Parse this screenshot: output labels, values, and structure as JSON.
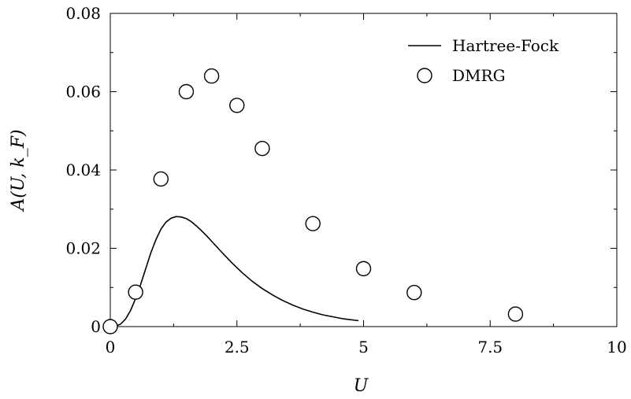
{
  "chart_data": {
    "type": "line",
    "xlabel": "U",
    "ylabel": "A(U, k_F)",
    "xlim": [
      0,
      10
    ],
    "ylim": [
      0,
      0.08
    ],
    "xticks": [
      0,
      2.5,
      5,
      7.5,
      10
    ],
    "xtick_labels": [
      "0",
      "2.5",
      "5",
      "7.5",
      "10"
    ],
    "yticks": [
      0,
      0.02,
      0.04,
      0.06,
      0.08
    ],
    "ytick_labels": [
      "0",
      "0.02",
      "0.04",
      "0.06",
      "0.08"
    ],
    "grid": false,
    "legend_position": "top-right",
    "series": [
      {
        "name": "Hartree-Fock",
        "kind": "line",
        "color": "#000000",
        "x": [
          0,
          0.1,
          0.2,
          0.3,
          0.4,
          0.5,
          0.6,
          0.7,
          0.8,
          0.9,
          1.0,
          1.1,
          1.2,
          1.3,
          1.4,
          1.5,
          1.6,
          1.7,
          1.8,
          1.9,
          2.0,
          2.2,
          2.4,
          2.6,
          2.8,
          3.0,
          3.2,
          3.4,
          3.6,
          3.8,
          4.0,
          4.2,
          4.4,
          4.6,
          4.9
        ],
        "y": [
          0,
          0.0001,
          0.0006,
          0.0019,
          0.0041,
          0.0072,
          0.0108,
          0.0148,
          0.0188,
          0.0222,
          0.0249,
          0.0267,
          0.0277,
          0.0281,
          0.028,
          0.0276,
          0.0268,
          0.0257,
          0.0245,
          0.0232,
          0.0218,
          0.019,
          0.0163,
          0.0138,
          0.0116,
          0.0097,
          0.0081,
          0.0067,
          0.0055,
          0.0045,
          0.0037,
          0.003,
          0.0025,
          0.002,
          0.0015
        ]
      },
      {
        "name": "DMRG",
        "kind": "scatter",
        "marker": "open-circle",
        "color": "#000000",
        "x": [
          0,
          0.5,
          1,
          1.5,
          2,
          2.5,
          3,
          4,
          5,
          6,
          8
        ],
        "y": [
          0,
          0.0088,
          0.0377,
          0.06,
          0.064,
          0.0565,
          0.0455,
          0.0263,
          0.0148,
          0.0087,
          0.0032
        ]
      }
    ]
  }
}
